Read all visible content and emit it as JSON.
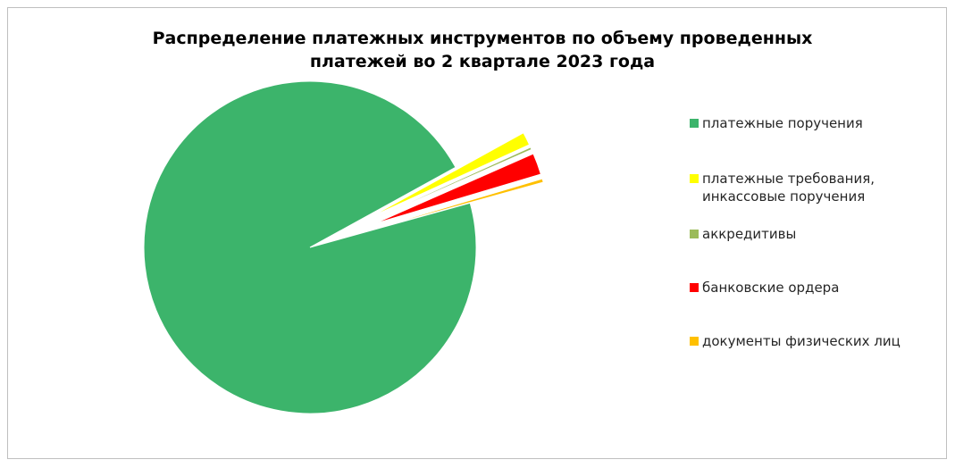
{
  "chart_data": {
    "type": "pie",
    "title_lines": [
      "Распределение платежных инструментов по объему проведенных",
      "платежей во 2 квартале 2023 года"
    ],
    "legend_position": "right",
    "categories": [
      "платежные поручения",
      "платежные требования, инкассовые поручения",
      "аккредитивы",
      "банковские ордера",
      "документы физических лиц"
    ],
    "legend_lines": [
      [
        "платежные поручения"
      ],
      [
        "платежные требования,",
        "инкассовые поручения"
      ],
      [
        "аккредитивы"
      ],
      [
        "банковские ордера"
      ],
      [
        "документы физических лиц"
      ]
    ],
    "values": [
      96.3,
      1.2,
      0.2,
      2.0,
      0.3
    ],
    "exploded": [
      false,
      true,
      true,
      true,
      true
    ],
    "colors": [
      "#3cb46b",
      "#ffff00",
      "#9bbb59",
      "#ff0000",
      "#ffc000"
    ]
  }
}
